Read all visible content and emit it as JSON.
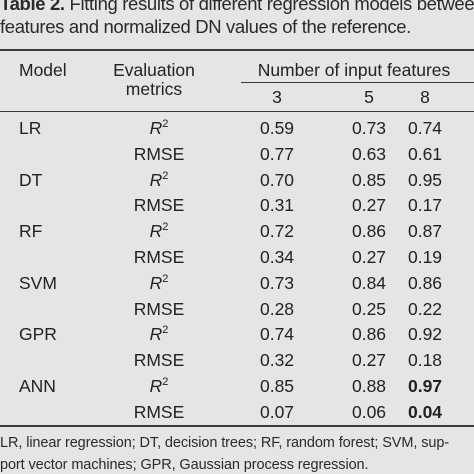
{
  "caption": {
    "table_number": "Table 2.",
    "line1": "Fitting results of different regression models between",
    "line2": "features and normalized DN values of the reference."
  },
  "header": {
    "model": "Model",
    "evaluation_line1": "Evaluation",
    "evaluation_line2": "metrics",
    "group": "Number of input features",
    "columns": [
      "3",
      "5",
      "8"
    ]
  },
  "rows": [
    {
      "model": "LR",
      "r2_label": "R",
      "r2_sup": "2",
      "r2": [
        "0.59",
        "0.73",
        "0.74"
      ],
      "rmse_label": "RMSE",
      "rmse": [
        "0.77",
        "0.63",
        "0.61"
      ]
    },
    {
      "model": "DT",
      "r2_label": "R",
      "r2_sup": "2",
      "r2": [
        "0.70",
        "0.85",
        "0.95"
      ],
      "rmse_label": "RMSE",
      "rmse": [
        "0.31",
        "0.27",
        "0.17"
      ]
    },
    {
      "model": "RF",
      "r2_label": "R",
      "r2_sup": "2",
      "r2": [
        "0.72",
        "0.86",
        "0.87"
      ],
      "rmse_label": "RMSE",
      "rmse": [
        "0.34",
        "0.27",
        "0.19"
      ]
    },
    {
      "model": "SVM",
      "r2_label": "R",
      "r2_sup": "2",
      "r2": [
        "0.73",
        "0.84",
        "0.86"
      ],
      "rmse_label": "RMSE",
      "rmse": [
        "0.28",
        "0.25",
        "0.22"
      ]
    },
    {
      "model": "GPR",
      "r2_label": "R",
      "r2_sup": "2",
      "r2": [
        "0.74",
        "0.86",
        "0.92"
      ],
      "rmse_label": "RMSE",
      "rmse": [
        "0.32",
        "0.27",
        "0.18"
      ]
    },
    {
      "model": "ANN",
      "r2_label": "R",
      "r2_sup": "2",
      "r2": [
        "0.85",
        "0.88",
        "0.97"
      ],
      "rmse_label": "RMSE",
      "rmse": [
        "0.07",
        "0.06",
        "0.04"
      ]
    }
  ],
  "footnote": {
    "line1": "LR, linear regression; DT, decision trees; RF, random forest; SVM, sup-",
    "line2": "port vector machines; GPR, Gaussian process regression."
  },
  "colors": {
    "background": "#e5e5e5",
    "text": "#222222",
    "rules": "#3a3a3a"
  }
}
